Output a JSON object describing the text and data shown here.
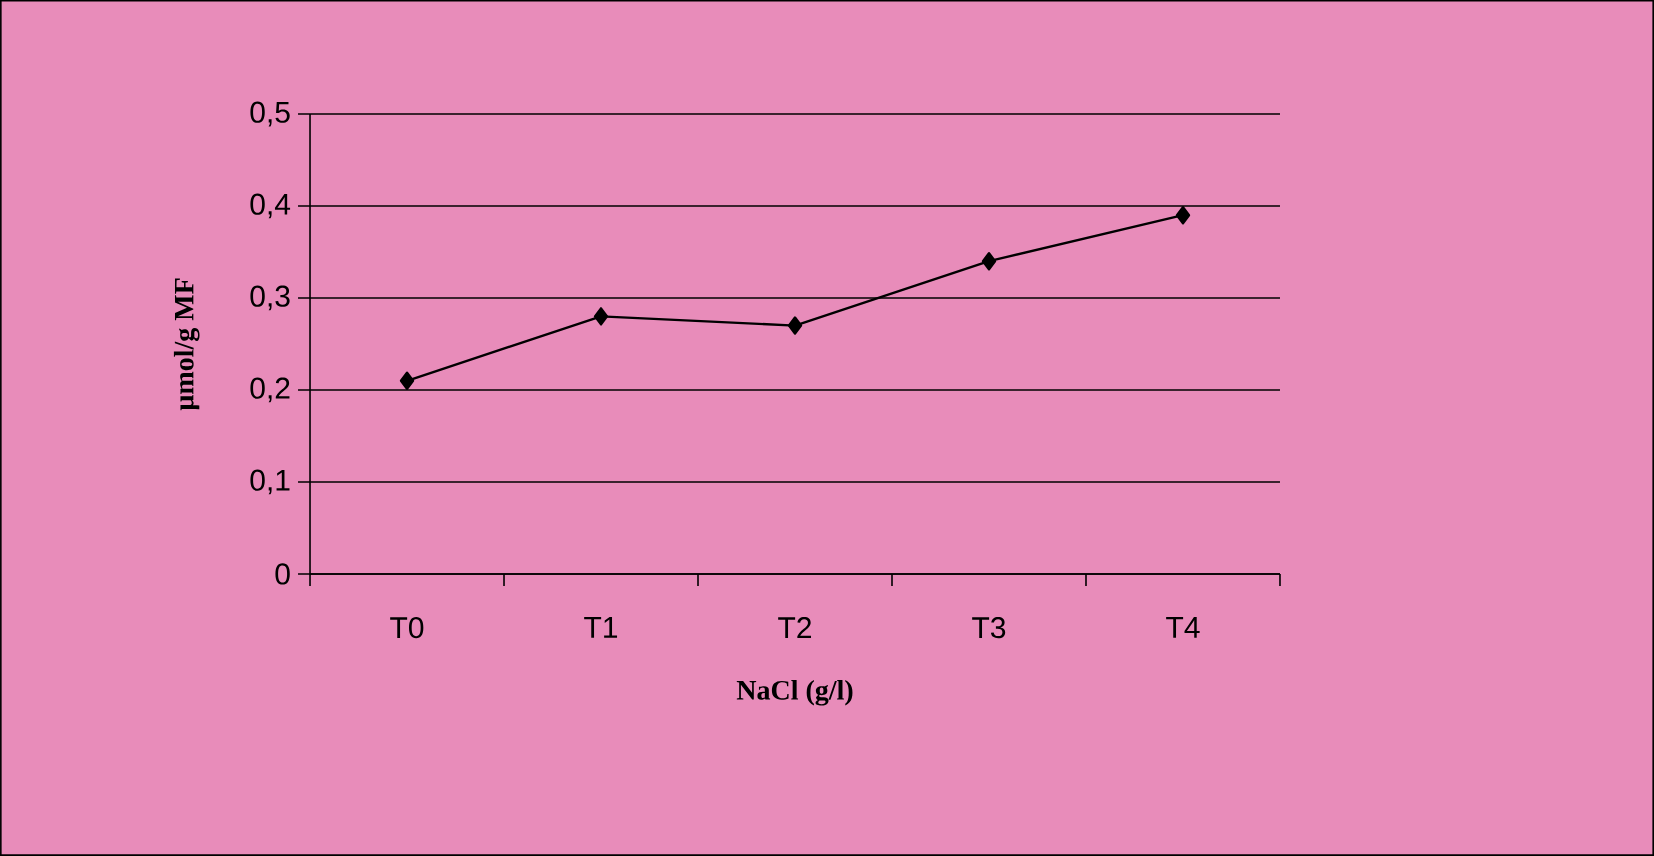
{
  "chart_data": {
    "type": "line",
    "xlabel": "NaCl (g/l)",
    "ylabel": "µmol/g MF",
    "categories": [
      "T0",
      "T1",
      "T2",
      "T3",
      "T4"
    ],
    "series": [
      {
        "color": "#000000",
        "values": [
          0.21,
          0.28,
          0.27,
          0.34,
          0.39
        ]
      }
    ],
    "ylim": [
      0,
      0.5
    ],
    "yticks": [
      0,
      {
        "value": 0.1,
        "label": "0,1"
      },
      {
        "value": 0.2,
        "label": "0,2"
      },
      {
        "value": 0.3,
        "label": "0,3"
      },
      {
        "value": 0.4,
        "label": "0,4"
      },
      {
        "value": 0.5,
        "label": "0,5"
      }
    ],
    "grid": "y",
    "marker": "diamond",
    "line_style": "solid"
  }
}
